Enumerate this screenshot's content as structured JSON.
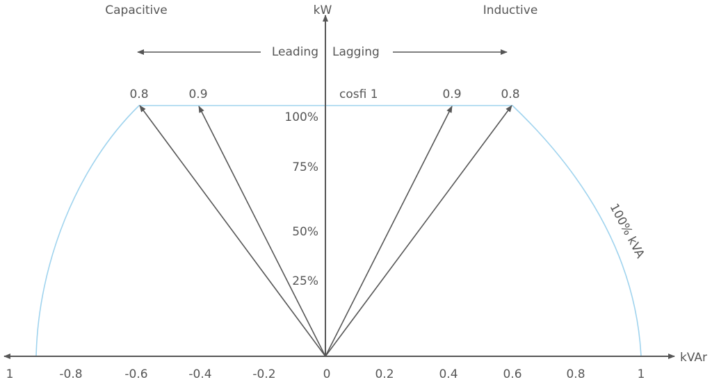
{
  "title_left": "Capacitive",
  "title_right": "Inductive",
  "axis_y_label": "kW",
  "axis_x_label": "kVAr",
  "leading_label": "Leading",
  "lagging_label": "Lagging",
  "cosfi_label": "cosfi 1",
  "pf_labels": {
    "left_08": "0.8",
    "left_09": "0.9",
    "right_09": "0.9",
    "right_08": "0.8"
  },
  "y_ticks": [
    "100%",
    "75%",
    "50%",
    "25%"
  ],
  "x_ticks": [
    "1",
    "-0.8",
    "-0.6",
    "-0.4",
    "-0.2",
    "0",
    "0.2",
    "0.4",
    "0.6",
    "0.8",
    "1"
  ],
  "arc_label": "100% kVA",
  "colors": {
    "axis": "#555555",
    "arc": "#9fd3ee"
  }
}
